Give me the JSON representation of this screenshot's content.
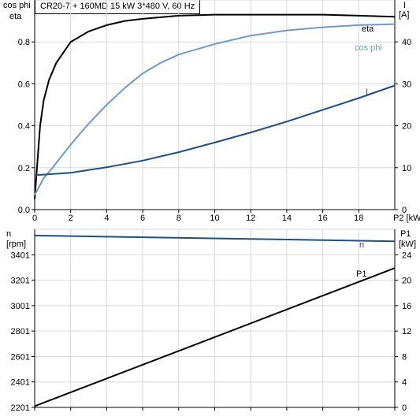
{
  "title": "CR20-7 + 160MD   15 kW   3*480 V, 60 Hz",
  "chart_data": [
    {
      "type": "line",
      "xlabel": "P2 [kW]",
      "xlim": [
        0,
        20
      ],
      "x_ticks": [
        "0",
        "2",
        "4",
        "6",
        "8",
        "10",
        "12",
        "14",
        "16",
        "18"
      ],
      "left_axis": {
        "label_line1": "cos phi",
        "label_line2": "eta",
        "ylim": [
          0,
          1.0
        ],
        "ticks": [
          "0.0",
          "0.2",
          "0.4",
          "0.6",
          "0.8"
        ]
      },
      "right_axis": {
        "label_line1": "I",
        "label_line2": "[A]",
        "ylim": [
          0,
          50
        ],
        "ticks": [
          "0",
          "10",
          "20",
          "30",
          "40"
        ]
      },
      "grid": true,
      "series": [
        {
          "name": "eta",
          "axis": "left",
          "color": "#000000",
          "x": [
            0,
            0.3,
            0.5,
            0.8,
            1.2,
            1.6,
            2,
            3,
            4,
            5,
            6,
            8,
            10,
            12,
            14,
            16,
            18,
            20
          ],
          "y": [
            0.05,
            0.4,
            0.52,
            0.62,
            0.7,
            0.75,
            0.8,
            0.85,
            0.88,
            0.9,
            0.91,
            0.925,
            0.93,
            0.93,
            0.93,
            0.93,
            0.925,
            0.92
          ]
        },
        {
          "name": "cos phi",
          "axis": "left",
          "color": "#6f9cc4",
          "x": [
            0,
            0.5,
            1,
            2,
            3,
            4,
            5,
            6,
            7,
            8,
            10,
            12,
            14,
            16,
            18,
            20
          ],
          "y": [
            0.07,
            0.15,
            0.2,
            0.31,
            0.41,
            0.5,
            0.58,
            0.65,
            0.7,
            0.74,
            0.79,
            0.83,
            0.855,
            0.87,
            0.88,
            0.885
          ]
        },
        {
          "name": "I",
          "axis": "right",
          "color": "#1d4f86",
          "x": [
            0,
            2,
            4,
            6,
            8,
            10,
            12,
            14,
            16,
            18,
            20
          ],
          "y": [
            8.2,
            8.8,
            10.1,
            11.7,
            13.7,
            16,
            18.4,
            21,
            23.8,
            26.6,
            29.6
          ]
        }
      ]
    },
    {
      "type": "line",
      "xlim": [
        0,
        20
      ],
      "left_axis": {
        "label_line1": "n",
        "label_line2": "[rpm]",
        "ylim": [
          2201,
          3601
        ],
        "ticks": [
          "2201",
          "2401",
          "2601",
          "2801",
          "3001",
          "3201",
          "3401"
        ]
      },
      "right_axis": {
        "label_line1": "P1",
        "label_line2": "[kW]",
        "ylim": [
          0,
          28
        ],
        "ticks": [
          "0",
          "4",
          "8",
          "12",
          "16",
          "20",
          "24"
        ]
      },
      "grid": true,
      "series": [
        {
          "name": "n",
          "axis": "left",
          "color": "#1d4f86",
          "x": [
            0,
            20
          ],
          "y": [
            3552,
            3507
          ]
        },
        {
          "name": "P1",
          "axis": "right",
          "color": "#000000",
          "x": [
            0,
            20
          ],
          "y": [
            0.2,
            21.9
          ]
        }
      ]
    }
  ]
}
